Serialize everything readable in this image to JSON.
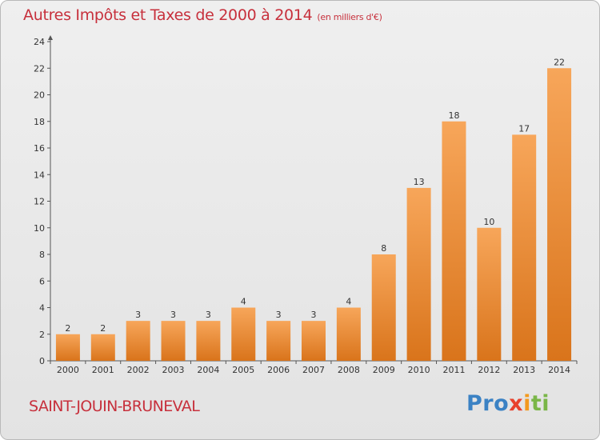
{
  "title": "Autres Impôts et Taxes de 2000 à 2014",
  "title_unit": "(en milliers d'€)",
  "city": "SAINT-JOUIN-BRUNEVAL",
  "logo": {
    "part1": "Pro",
    "part2": "x",
    "part3": "i",
    "part4": "ti"
  },
  "colors": {
    "title": "#c7303c",
    "bar_light": "#f7a65a",
    "bar_dark": "#d9741b"
  },
  "chart_data": {
    "type": "bar",
    "categories": [
      "2000",
      "2001",
      "2002",
      "2003",
      "2004",
      "2005",
      "2006",
      "2007",
      "2008",
      "2009",
      "2010",
      "2011",
      "2012",
      "2013",
      "2014"
    ],
    "values": [
      2,
      2,
      3,
      3,
      3,
      4,
      3,
      3,
      4,
      8,
      13,
      18,
      10,
      17,
      22
    ],
    "ylim": [
      0,
      24
    ],
    "yticks": [
      0,
      2,
      4,
      6,
      8,
      10,
      12,
      14,
      16,
      18,
      20,
      22,
      24
    ],
    "grid": false,
    "data_labels": true
  }
}
